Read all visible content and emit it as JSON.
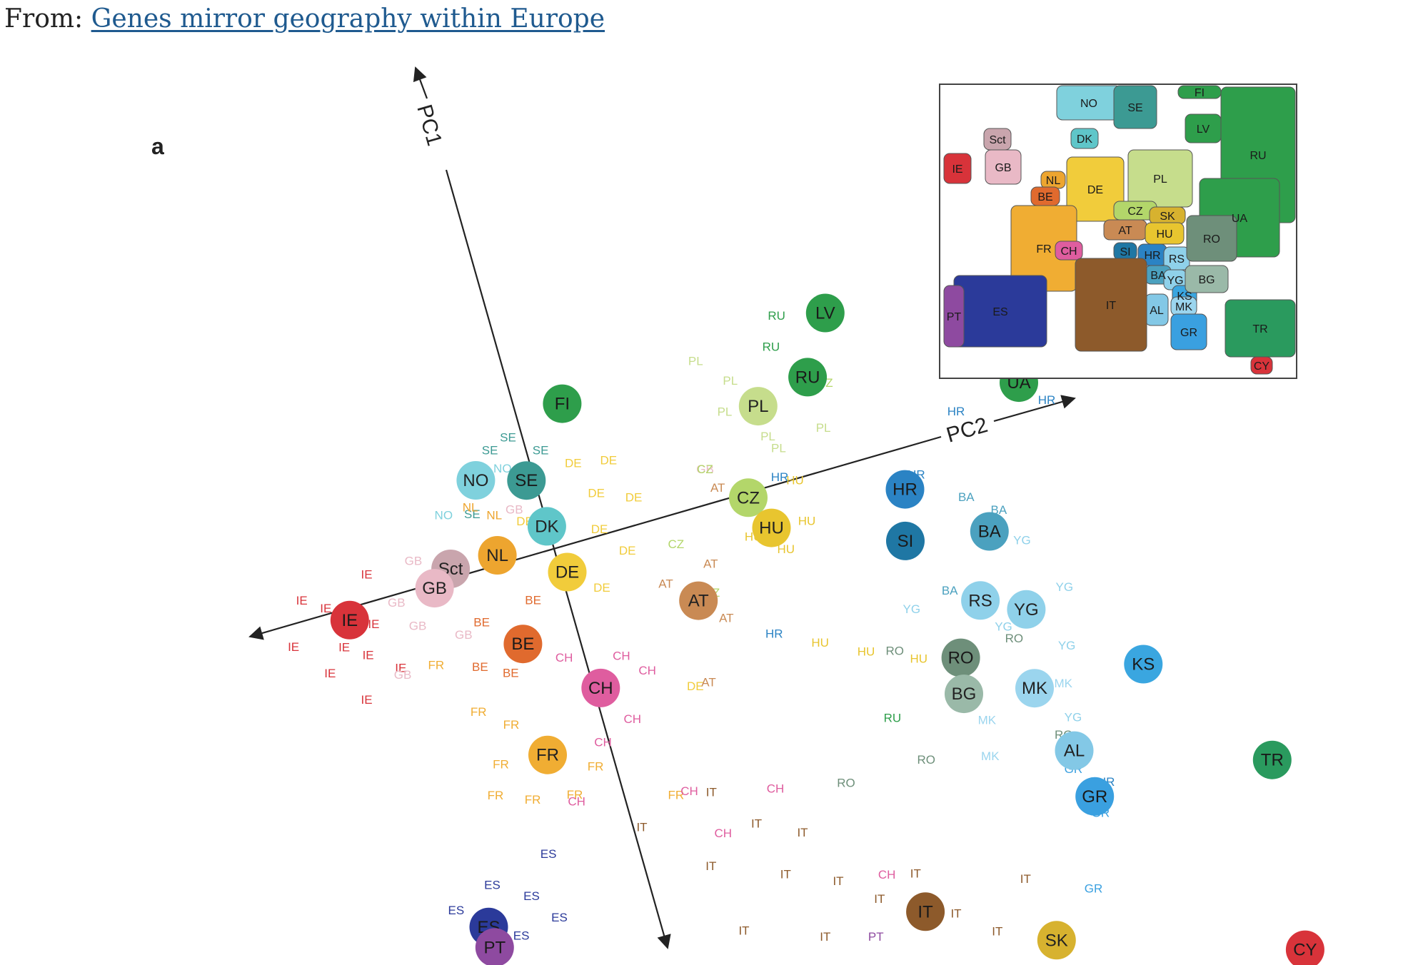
{
  "caption": {
    "prefix": "From:",
    "link": "Genes mirror geography within Europe"
  },
  "chart_data": {
    "type": "scatter",
    "panel_label": "a",
    "xlabel": "PC2",
    "ylabel": "PC1",
    "colors": {
      "IE": "#d8333a",
      "GB": "#e9b9c6",
      "Sct": "#c9a5ad",
      "NL": "#eda52f",
      "BE": "#e06a2e",
      "DE": "#f1cc3b",
      "DK": "#5fc6c9",
      "NO": "#7fd1dd",
      "SE": "#3c9a93",
      "FI": "#2e9e4b",
      "LV": "#2e9e4b",
      "RU": "#2e9e4b",
      "UA": "#2e9e4b",
      "PL": "#c6dd8c",
      "CZ": "#b3d66a",
      "HU": "#e8c52f",
      "AT": "#c98a54",
      "CH": "#df5d9f",
      "FR": "#f0ad33",
      "ES": "#2b3a9a",
      "PT": "#8e4aa0",
      "IT": "#8d5a2b",
      "SI": "#1f77a4",
      "HR": "#2b83c4",
      "BA": "#4ba1bf",
      "RS": "#8fd1ea",
      "YG": "#8fd1ea",
      "RO": "#6e8f7a",
      "BG": "#9ab9a8",
      "MK": "#9bd5ee",
      "KS": "#3aa6e0",
      "AL": "#83c8e6",
      "GR": "#3aa0e0",
      "TR": "#2a9a5e",
      "SK": "#d7b22f",
      "CY": "#d8333a"
    },
    "centroids": [
      {
        "label": "LV",
        "x": 66,
        "y": -15
      },
      {
        "label": "FI",
        "x": 26,
        "y": -13
      },
      {
        "label": "RU",
        "x": 61,
        "y": -7
      },
      {
        "label": "PL",
        "x": 53,
        "y": -5
      },
      {
        "label": "UA",
        "x": 90,
        "y": 2
      },
      {
        "label": "NO",
        "x": 11,
        "y": -6
      },
      {
        "label": "SE",
        "x": 18,
        "y": -4
      },
      {
        "label": "DK",
        "x": 19,
        "y": 3
      },
      {
        "label": "IE",
        "x": -12,
        "y": 8
      },
      {
        "label": "Sct",
        "x": 4,
        "y": 5
      },
      {
        "label": "GB",
        "x": 1,
        "y": 7
      },
      {
        "label": "NL",
        "x": 11,
        "y": 5
      },
      {
        "label": "DE",
        "x": 20,
        "y": 10
      },
      {
        "label": "CZ",
        "x": 48,
        "y": 7
      },
      {
        "label": "HU",
        "x": 50,
        "y": 12
      },
      {
        "label": "HR",
        "x": 70,
        "y": 12
      },
      {
        "label": "AT",
        "x": 37,
        "y": 19
      },
      {
        "label": "SI",
        "x": 68,
        "y": 19
      },
      {
        "label": "BA",
        "x": 80,
        "y": 21
      },
      {
        "label": "BE",
        "x": 11,
        "y": 18
      },
      {
        "label": "CH",
        "x": 20,
        "y": 27
      },
      {
        "label": "FR",
        "x": 10,
        "y": 34
      },
      {
        "label": "RS",
        "x": 76,
        "y": 30
      },
      {
        "label": "YG",
        "x": 82,
        "y": 33
      },
      {
        "label": "RO",
        "x": 71,
        "y": 37
      },
      {
        "label": "BG",
        "x": 70,
        "y": 42
      },
      {
        "label": "MK",
        "x": 80,
        "y": 44
      },
      {
        "label": "KS",
        "x": 96,
        "y": 45
      },
      {
        "label": "AL",
        "x": 83,
        "y": 54
      },
      {
        "label": "GR",
        "x": 84,
        "y": 61
      },
      {
        "label": "ES",
        "x": -5,
        "y": 55
      },
      {
        "label": "PT",
        "x": -5,
        "y": 58
      },
      {
        "label": "TR",
        "x": 110,
        "y": 63
      },
      {
        "label": "IT",
        "x": 56,
        "y": 70
      },
      {
        "label": "SK",
        "x": 73,
        "y": 79
      },
      {
        "label": "CY",
        "x": 107,
        "y": 90
      }
    ],
    "individuals": [
      {
        "label": "IE",
        "x": -21,
        "y": 10
      },
      {
        "label": "IE",
        "x": -18,
        "y": 4
      },
      {
        "label": "IE",
        "x": -15,
        "y": 6
      },
      {
        "label": "IE",
        "x": -14,
        "y": 12
      },
      {
        "label": "IE",
        "x": -11,
        "y": 14
      },
      {
        "label": "IE",
        "x": -13,
        "y": 20
      },
      {
        "label": "IE",
        "x": -9,
        "y": 10
      },
      {
        "label": "IE",
        "x": -8,
        "y": 3
      },
      {
        "label": "IE",
        "x": -17,
        "y": 15
      },
      {
        "label": "IE",
        "x": -7,
        "y": 17
      },
      {
        "label": "GB",
        "x": -5,
        "y": 8
      },
      {
        "label": "GB",
        "x": -3,
        "y": 12
      },
      {
        "label": "GB",
        "x": -1,
        "y": 3
      },
      {
        "label": "GB",
        "x": -7,
        "y": 18
      },
      {
        "label": "GB",
        "x": 3,
        "y": 15
      },
      {
        "label": "GB",
        "x": 15,
        "y": 0
      },
      {
        "label": "GB",
        "x": 43,
        "y": 2
      },
      {
        "label": "GB",
        "x": 56,
        "y": 95
      },
      {
        "label": "SE",
        "x": 17,
        "y": -10
      },
      {
        "label": "SE",
        "x": 21,
        "y": -7
      },
      {
        "label": "SE",
        "x": 14,
        "y": -9
      },
      {
        "label": "SE",
        "x": 9,
        "y": -1
      },
      {
        "label": "NO",
        "x": 15,
        "y": -6
      },
      {
        "label": "NO",
        "x": 5,
        "y": -2
      },
      {
        "label": "DE",
        "x": 25,
        "y": -4
      },
      {
        "label": "DE",
        "x": 30,
        "y": -3
      },
      {
        "label": "DE",
        "x": 27,
        "y": 1
      },
      {
        "label": "DE",
        "x": 32,
        "y": 3
      },
      {
        "label": "DE",
        "x": 26,
        "y": 6
      },
      {
        "label": "DE",
        "x": 29,
        "y": 10
      },
      {
        "label": "DE",
        "x": 24,
        "y": 14
      },
      {
        "label": "DE",
        "x": 16,
        "y": 2
      },
      {
        "label": "DE",
        "x": 33,
        "y": 31
      },
      {
        "label": "PL",
        "x": 46,
        "y": -13
      },
      {
        "label": "PL",
        "x": 50,
        "y": -9
      },
      {
        "label": "PL",
        "x": 48,
        "y": -5
      },
      {
        "label": "PL",
        "x": 60,
        "y": -6
      },
      {
        "label": "PL",
        "x": 61,
        "y": 1
      },
      {
        "label": "PL",
        "x": 53,
        "y": 0
      },
      {
        "label": "PL",
        "x": 54,
        "y": 2
      },
      {
        "label": "RU",
        "x": 57,
        "y": -12
      },
      {
        "label": "RU",
        "x": 59,
        "y": -16
      },
      {
        "label": "RU",
        "x": 59,
        "y": 43
      },
      {
        "label": "CZ",
        "x": 63,
        "y": -5
      },
      {
        "label": "CZ",
        "x": 43,
        "y": 2
      },
      {
        "label": "CZ",
        "x": 36,
        "y": 11
      },
      {
        "label": "CZ",
        "x": 39,
        "y": 19
      },
      {
        "label": "HU",
        "x": 55,
        "y": 7
      },
      {
        "label": "HU",
        "x": 55,
        "y": 13
      },
      {
        "label": "HU",
        "x": 47,
        "y": 13
      },
      {
        "label": "HU",
        "x": 51,
        "y": 16
      },
      {
        "label": "HU",
        "x": 52,
        "y": 30
      },
      {
        "label": "HU",
        "x": 65,
        "y": 36
      },
      {
        "label": "HU",
        "x": 58,
        "y": 33
      },
      {
        "label": "AT",
        "x": 40,
        "y": 15
      },
      {
        "label": "AT",
        "x": 33,
        "y": 16
      },
      {
        "label": "AT",
        "x": 44,
        "y": 5
      },
      {
        "label": "AT",
        "x": 40,
        "y": 23
      },
      {
        "label": "AT",
        "x": 35,
        "y": 31
      },
      {
        "label": "HR",
        "x": 53,
        "y": 6
      },
      {
        "label": "HR",
        "x": 72,
        "y": 11
      },
      {
        "label": "HR",
        "x": 46,
        "y": 27
      },
      {
        "label": "HR",
        "x": 80,
        "y": 4
      },
      {
        "label": "HR",
        "x": 86,
        "y": 60
      },
      {
        "label": "HR",
        "x": 93,
        "y": 6
      },
      {
        "label": "BA",
        "x": 78,
        "y": 16
      },
      {
        "label": "BA",
        "x": 82,
        "y": 19
      },
      {
        "label": "BA",
        "x": 72,
        "y": 28
      },
      {
        "label": "YG",
        "x": 84,
        "y": 24
      },
      {
        "label": "YG",
        "x": 88,
        "y": 32
      },
      {
        "label": "YG",
        "x": 78,
        "y": 35
      },
      {
        "label": "YG",
        "x": 86,
        "y": 40
      },
      {
        "label": "YG",
        "x": 84,
        "y": 50
      },
      {
        "label": "YG",
        "x": 66,
        "y": 29
      },
      {
        "label": "RO",
        "x": 62,
        "y": 34
      },
      {
        "label": "RO",
        "x": 79,
        "y": 37
      },
      {
        "label": "RO",
        "x": 82,
        "y": 52
      },
      {
        "label": "RO",
        "x": 62,
        "y": 50
      },
      {
        "label": "RO",
        "x": 50,
        "y": 50
      },
      {
        "label": "MK",
        "x": 84,
        "y": 45
      },
      {
        "label": "MK",
        "x": 71,
        "y": 52
      },
      {
        "label": "MK",
        "x": 72,
        "y": 47
      },
      {
        "label": "GR",
        "x": 82,
        "y": 57
      },
      {
        "label": "GR",
        "x": 84,
        "y": 64
      },
      {
        "label": "GR",
        "x": 80,
        "y": 74
      },
      {
        "label": "GR",
        "x": 60,
        "y": 87
      },
      {
        "label": "TR",
        "x": 114,
        "y": 52
      },
      {
        "label": "TR",
        "x": 124,
        "y": 52
      },
      {
        "label": "TR",
        "x": 105,
        "y": 72
      },
      {
        "label": "TR",
        "x": 114,
        "y": 73
      },
      {
        "label": "CY",
        "x": 103,
        "y": 87
      },
      {
        "label": "CY",
        "x": 108,
        "y": 86
      },
      {
        "label": "FR",
        "x": -2,
        "y": 18
      },
      {
        "label": "FR",
        "x": 2,
        "y": 26
      },
      {
        "label": "FR",
        "x": 6,
        "y": 29
      },
      {
        "label": "FR",
        "x": 3,
        "y": 34
      },
      {
        "label": "FR",
        "x": 6,
        "y": 40
      },
      {
        "label": "FR",
        "x": 12,
        "y": 41
      },
      {
        "label": "FR",
        "x": 16,
        "y": 38
      },
      {
        "label": "FR",
        "x": 1,
        "y": 38
      },
      {
        "label": "FR",
        "x": 26,
        "y": 45
      },
      {
        "label": "CH",
        "x": 16,
        "y": 22
      },
      {
        "label": "CH",
        "x": 24,
        "y": 24
      },
      {
        "label": "CH",
        "x": 27,
        "y": 27
      },
      {
        "label": "CH",
        "x": 23,
        "y": 33
      },
      {
        "label": "CH",
        "x": 18,
        "y": 35
      },
      {
        "label": "CH",
        "x": 28,
        "y": 45
      },
      {
        "label": "CH",
        "x": 40,
        "y": 48
      },
      {
        "label": "CH",
        "x": 31,
        "y": 52
      },
      {
        "label": "CH",
        "x": 52,
        "y": 64
      },
      {
        "label": "CH",
        "x": 12,
        "y": 42
      },
      {
        "label": "BE",
        "x": 6,
        "y": 14
      },
      {
        "label": "BE",
        "x": 14,
        "y": 13
      },
      {
        "label": "BE",
        "x": 8,
        "y": 22
      },
      {
        "label": "BE",
        "x": 4,
        "y": 20
      },
      {
        "label": "NL",
        "x": 12,
        "y": 0
      },
      {
        "label": "NL",
        "x": 9,
        "y": -2
      },
      {
        "label": "ES",
        "x": -9,
        "y": 52
      },
      {
        "label": "ES",
        "x": -3,
        "y": 50
      },
      {
        "label": "ES",
        "x": 2,
        "y": 53
      },
      {
        "label": "ES",
        "x": -10,
        "y": 57
      },
      {
        "label": "ES",
        "x": -1,
        "y": 58
      },
      {
        "label": "ES",
        "x": 5,
        "y": 57
      },
      {
        "label": "ES",
        "x": 6,
        "y": 48
      },
      {
        "label": "ES",
        "x": 3,
        "y": 62
      },
      {
        "label": "ES",
        "x": -6,
        "y": 61
      },
      {
        "label": "ES",
        "x": 7,
        "y": 65
      },
      {
        "label": "PT",
        "x": -8,
        "y": 60
      },
      {
        "label": "PT",
        "x": -4,
        "y": 62
      },
      {
        "label": "PT",
        "x": -12,
        "y": 63
      },
      {
        "label": "PT",
        "x": -1,
        "y": 64
      },
      {
        "label": "PT",
        "x": -6,
        "y": 66
      },
      {
        "label": "PT",
        "x": 2,
        "y": 63
      },
      {
        "label": "PT",
        "x": 48,
        "y": 72
      },
      {
        "label": "IT",
        "x": 20,
        "y": 48
      },
      {
        "label": "IT",
        "x": 31,
        "y": 46
      },
      {
        "label": "IT",
        "x": 36,
        "y": 52
      },
      {
        "label": "IT",
        "x": 42,
        "y": 55
      },
      {
        "label": "IT",
        "x": 28,
        "y": 56
      },
      {
        "label": "IT",
        "x": 38,
        "y": 60
      },
      {
        "label": "IT",
        "x": 45,
        "y": 63
      },
      {
        "label": "IT",
        "x": 50,
        "y": 67
      },
      {
        "label": "IT",
        "x": 56,
        "y": 65
      },
      {
        "label": "IT",
        "x": 60,
        "y": 72
      },
      {
        "label": "IT",
        "x": 52,
        "y": 75
      },
      {
        "label": "IT",
        "x": 65,
        "y": 76
      },
      {
        "label": "IT",
        "x": 58,
        "y": 80
      },
      {
        "label": "IT",
        "x": 66,
        "y": 83
      },
      {
        "label": "IT",
        "x": 71,
        "y": 70
      },
      {
        "label": "IT",
        "x": 62,
        "y": 86
      },
      {
        "label": "IT",
        "x": 48,
        "y": 82
      },
      {
        "label": "IT",
        "x": 41,
        "y": 70
      },
      {
        "label": "IT",
        "x": 30,
        "y": 66
      },
      {
        "label": "IT",
        "x": 40,
        "y": 84
      },
      {
        "label": "IT",
        "x": 44,
        "y": 90
      },
      {
        "label": "IT",
        "x": 12,
        "y": 87
      },
      {
        "label": "IT",
        "x": 18,
        "y": 87
      },
      {
        "label": "IT",
        "x": 23,
        "y": 88
      },
      {
        "label": "IT",
        "x": 9,
        "y": 92
      },
      {
        "label": "IT",
        "x": 21,
        "y": 92
      },
      {
        "label": "IT",
        "x": 47,
        "y": 77
      }
    ],
    "inset_map": {
      "regions": [
        "NO",
        "SE",
        "FI",
        "DK",
        "Sct",
        "GB",
        "IE",
        "NL",
        "BE",
        "DE",
        "PL",
        "LV",
        "RU",
        "UA",
        "CZ",
        "SK",
        "AT",
        "HU",
        "FR",
        "CH",
        "SI",
        "HR",
        "RS",
        "BA",
        "YG",
        "KS",
        "MK",
        "AL",
        "GR",
        "RO",
        "BG",
        "IT",
        "ES",
        "PT",
        "TR",
        "CY"
      ]
    }
  }
}
